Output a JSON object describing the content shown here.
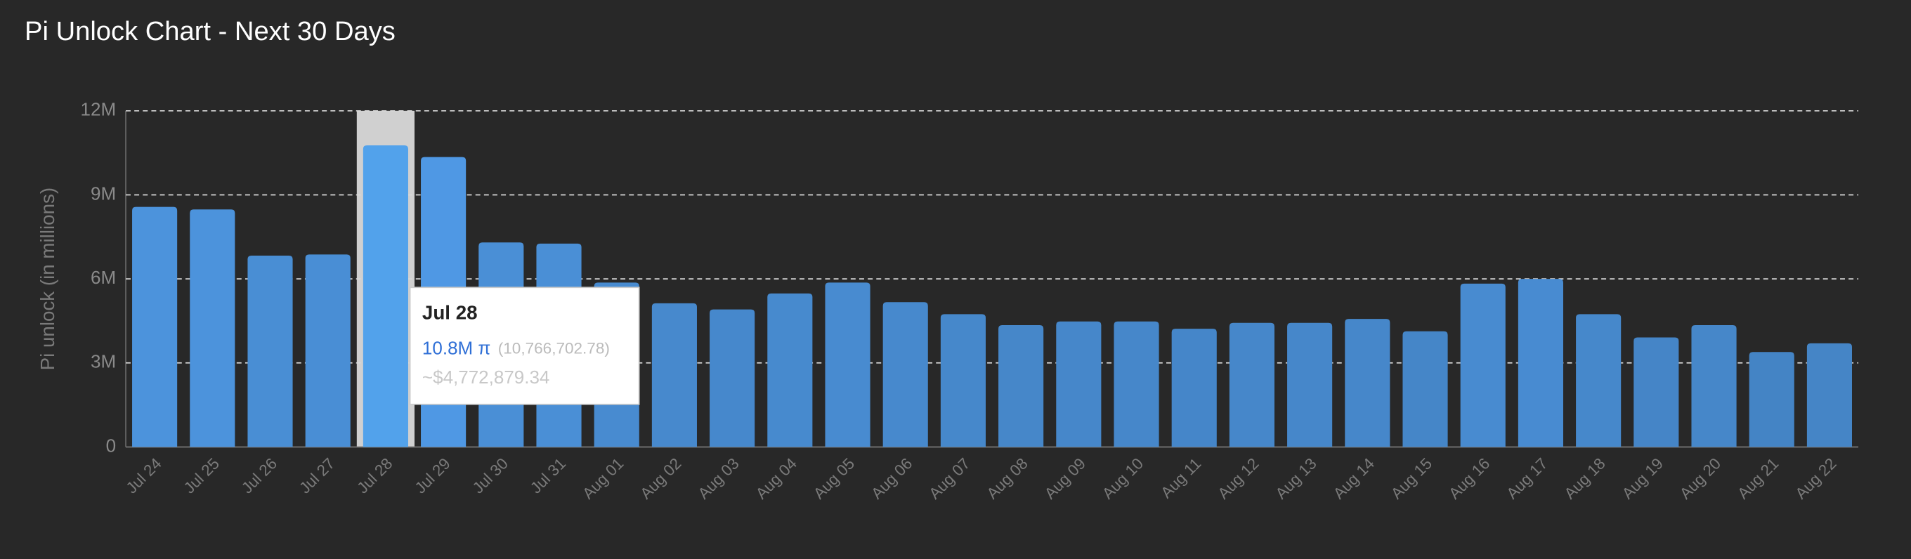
{
  "chart_data": {
    "type": "bar",
    "title": "Pi Unlock Chart - Next 30 Days",
    "y_label": "Pi unlock (in millions)",
    "categories": [
      "Jul 24",
      "Jul 25",
      "Jul 26",
      "Jul 27",
      "Jul 28",
      "Jul 29",
      "Jul 30",
      "Jul 31",
      "Aug 01",
      "Aug 02",
      "Aug 03",
      "Aug 04",
      "Aug 05",
      "Aug 06",
      "Aug 07",
      "Aug 08",
      "Aug 09",
      "Aug 10",
      "Aug 11",
      "Aug 12",
      "Aug 13",
      "Aug 14",
      "Aug 15",
      "Aug 16",
      "Aug 17",
      "Aug 18",
      "Aug 19",
      "Aug 20",
      "Aug 21",
      "Aug 22"
    ],
    "values": [
      8.57,
      8.48,
      6.83,
      6.87,
      10.76670278,
      10.35,
      7.3,
      7.26,
      5.87,
      5.13,
      4.91,
      5.48,
      5.87,
      5.17,
      4.74,
      4.35,
      4.48,
      4.48,
      4.22,
      4.43,
      4.43,
      4.57,
      4.13,
      5.83,
      6.0,
      4.74,
      3.91,
      4.35,
      3.39,
      3.7
    ],
    "color": "#4a8fd6",
    "highlight_color": "#52a2eb",
    "ylim": [
      0,
      12
    ],
    "yticks": [
      0,
      {
        "value": 3,
        "label": "3M"
      },
      {
        "value": 6,
        "label": "6M"
      },
      {
        "value": 9,
        "label": "9M"
      },
      {
        "value": 12,
        "label": "12M"
      }
    ],
    "grid": true,
    "tooltip": {
      "category": "Jul 28",
      "value_label": "10.8M π",
      "exact": "(10,766,702.78)",
      "usd": "~$4,772,879.34"
    }
  }
}
